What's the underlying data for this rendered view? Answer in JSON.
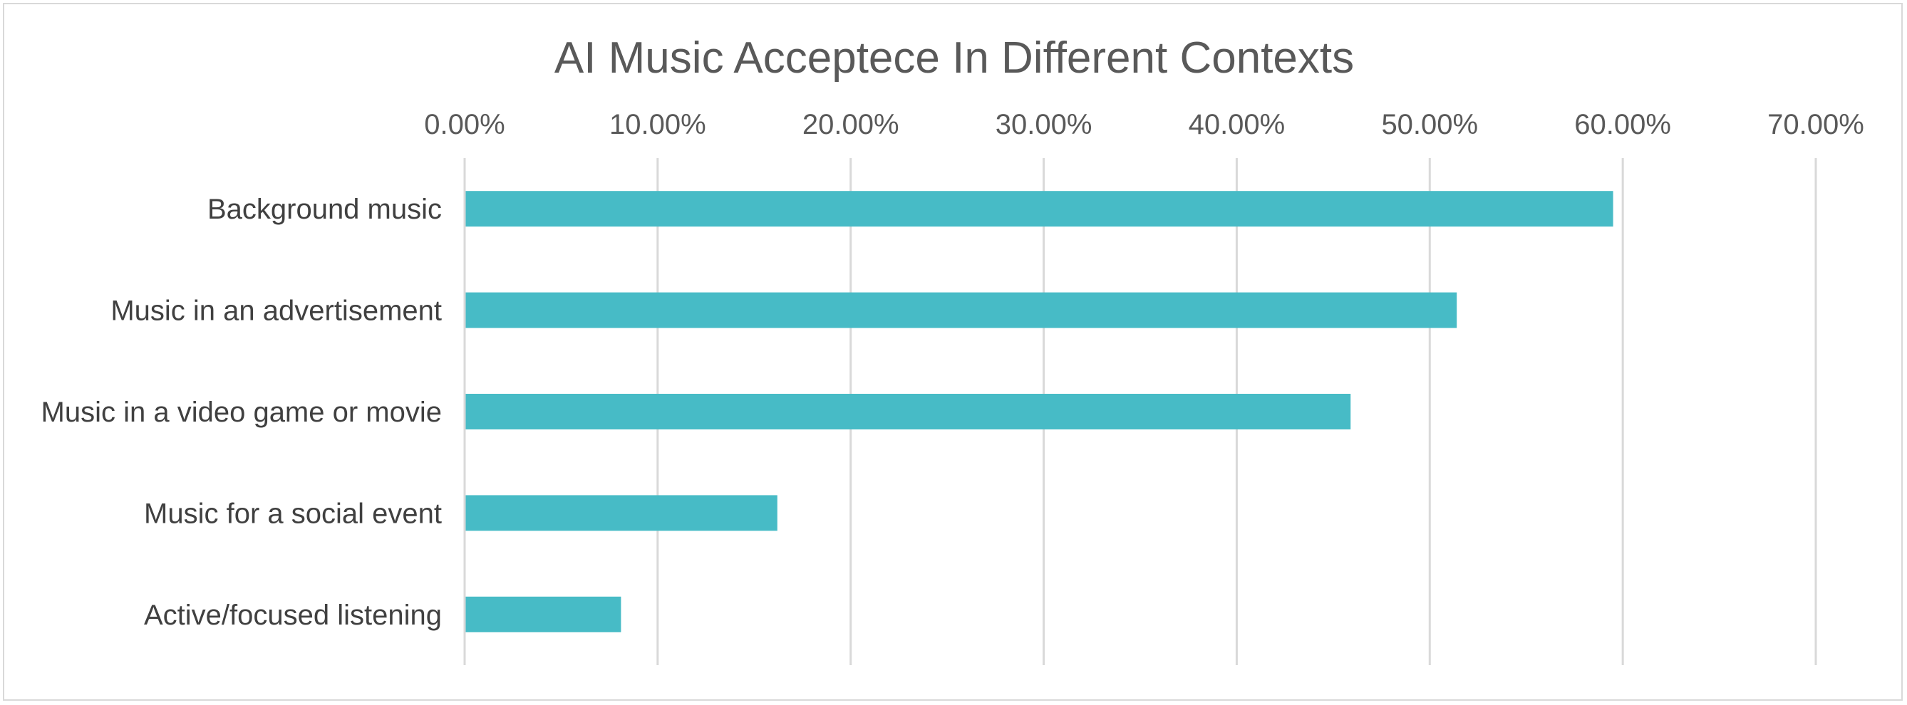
{
  "chart_data": {
    "type": "bar",
    "orientation": "horizontal",
    "title": "AI Music Acceptece In Different Contexts",
    "categories": [
      "Background music",
      "Music in an advertisement",
      "Music in a video game or movie",
      "Music for a social event",
      "Active/focused listening"
    ],
    "values": [
      59.5,
      51.4,
      45.9,
      16.2,
      8.1
    ],
    "xlim": [
      0,
      70
    ],
    "xticks": [
      0,
      10,
      20,
      30,
      40,
      50,
      60,
      70
    ],
    "xtick_labels": [
      "0.00%",
      "10.00%",
      "20.00%",
      "30.00%",
      "40.00%",
      "50.00%",
      "60.00%",
      "70.00%"
    ],
    "x_axis_position": "top",
    "grid": true,
    "legend": "none",
    "bar_color": "#47BBC6"
  }
}
